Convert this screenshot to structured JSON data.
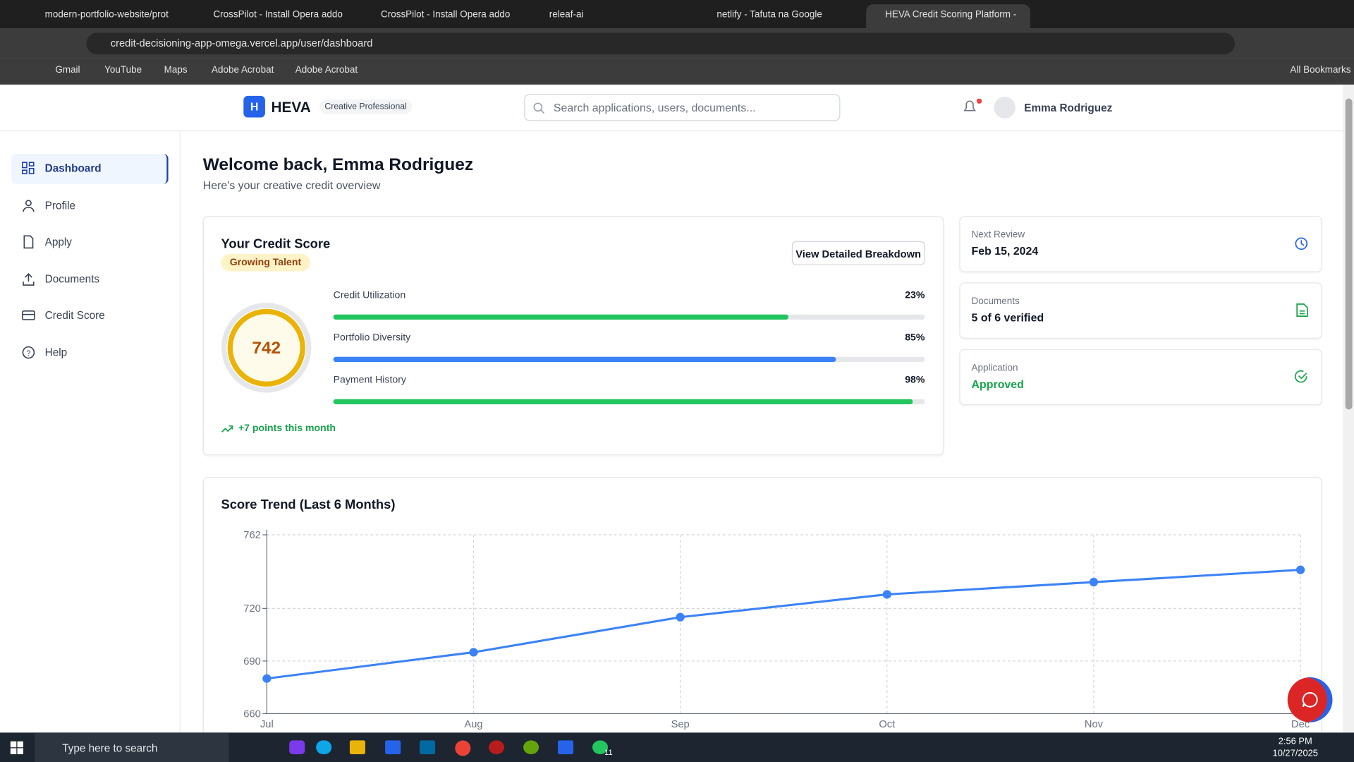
{
  "browser": {
    "tabs": [
      "modern-portfolio-website/prot",
      "CrossPilot - Install Opera addo",
      "CrossPilot - Install Opera addo",
      "releaf-ai",
      "netlify - Tafuta na Google",
      "HEVA Credit Scoring Platform -"
    ],
    "url": "credit-decisioning-app-omega.vercel.app/user/dashboard",
    "bookmarks": [
      "Gmail",
      "YouTube",
      "Maps",
      "Adobe Acrobat",
      "Adobe Acrobat"
    ],
    "all_bookmarks": "All Bookmarks"
  },
  "header": {
    "logo": "H",
    "brand": "HEVA",
    "badge": "Creative Professional",
    "search": "Search applications, users, documents...",
    "user": "Emma Rodriguez"
  },
  "sidebar": {
    "items": [
      "Dashboard",
      "Profile",
      "Apply",
      "Documents",
      "Credit Score",
      "Help"
    ]
  },
  "welcome": {
    "title": "Welcome back, Emma Rodriguez",
    "subtitle": "Here's your creative credit overview"
  },
  "credit_score": {
    "title": "Your Credit Score",
    "tier": "Growing Talent",
    "button": "View Detailed Breakdown",
    "score": 742,
    "bar_scale": [
      0,
      100
    ],
    "metrics": [
      {
        "name": "Credit Utilization",
        "value": 23,
        "value_label": "23%",
        "color": "#22c55e",
        "reverse_scale": true
      },
      {
        "name": "Portfolio Diversity",
        "value": 85,
        "value_label": "85%",
        "color": "#3b82f6",
        "reverse_scale": false
      },
      {
        "name": "Payment History",
        "value": 98,
        "value_label": "98%",
        "color": "#22c55e",
        "reverse_scale": false
      }
    ],
    "trend": "+7 points this month"
  },
  "status_cards": [
    {
      "label": "Next Review",
      "value": "Feb 15, 2024"
    },
    {
      "label": "Documents",
      "value": "5 of 6 verified"
    },
    {
      "label": "Application",
      "value": "Approved"
    }
  ],
  "chart_data": {
    "type": "line",
    "title": "Score Trend (Last 6 Months)",
    "categories": [
      "Jul",
      "Aug",
      "Sep",
      "Oct",
      "Nov",
      "Dec"
    ],
    "values": [
      680,
      695,
      715,
      728,
      735,
      742
    ],
    "color": "#3b82f6",
    "ylim": [
      660,
      762
    ],
    "yticks": [
      660,
      690,
      720,
      762
    ],
    "grid": true
  },
  "taskbar": {
    "search": "Type here to search",
    "badge": "11",
    "time": "2:56 PM",
    "date": "10/27/2025"
  }
}
